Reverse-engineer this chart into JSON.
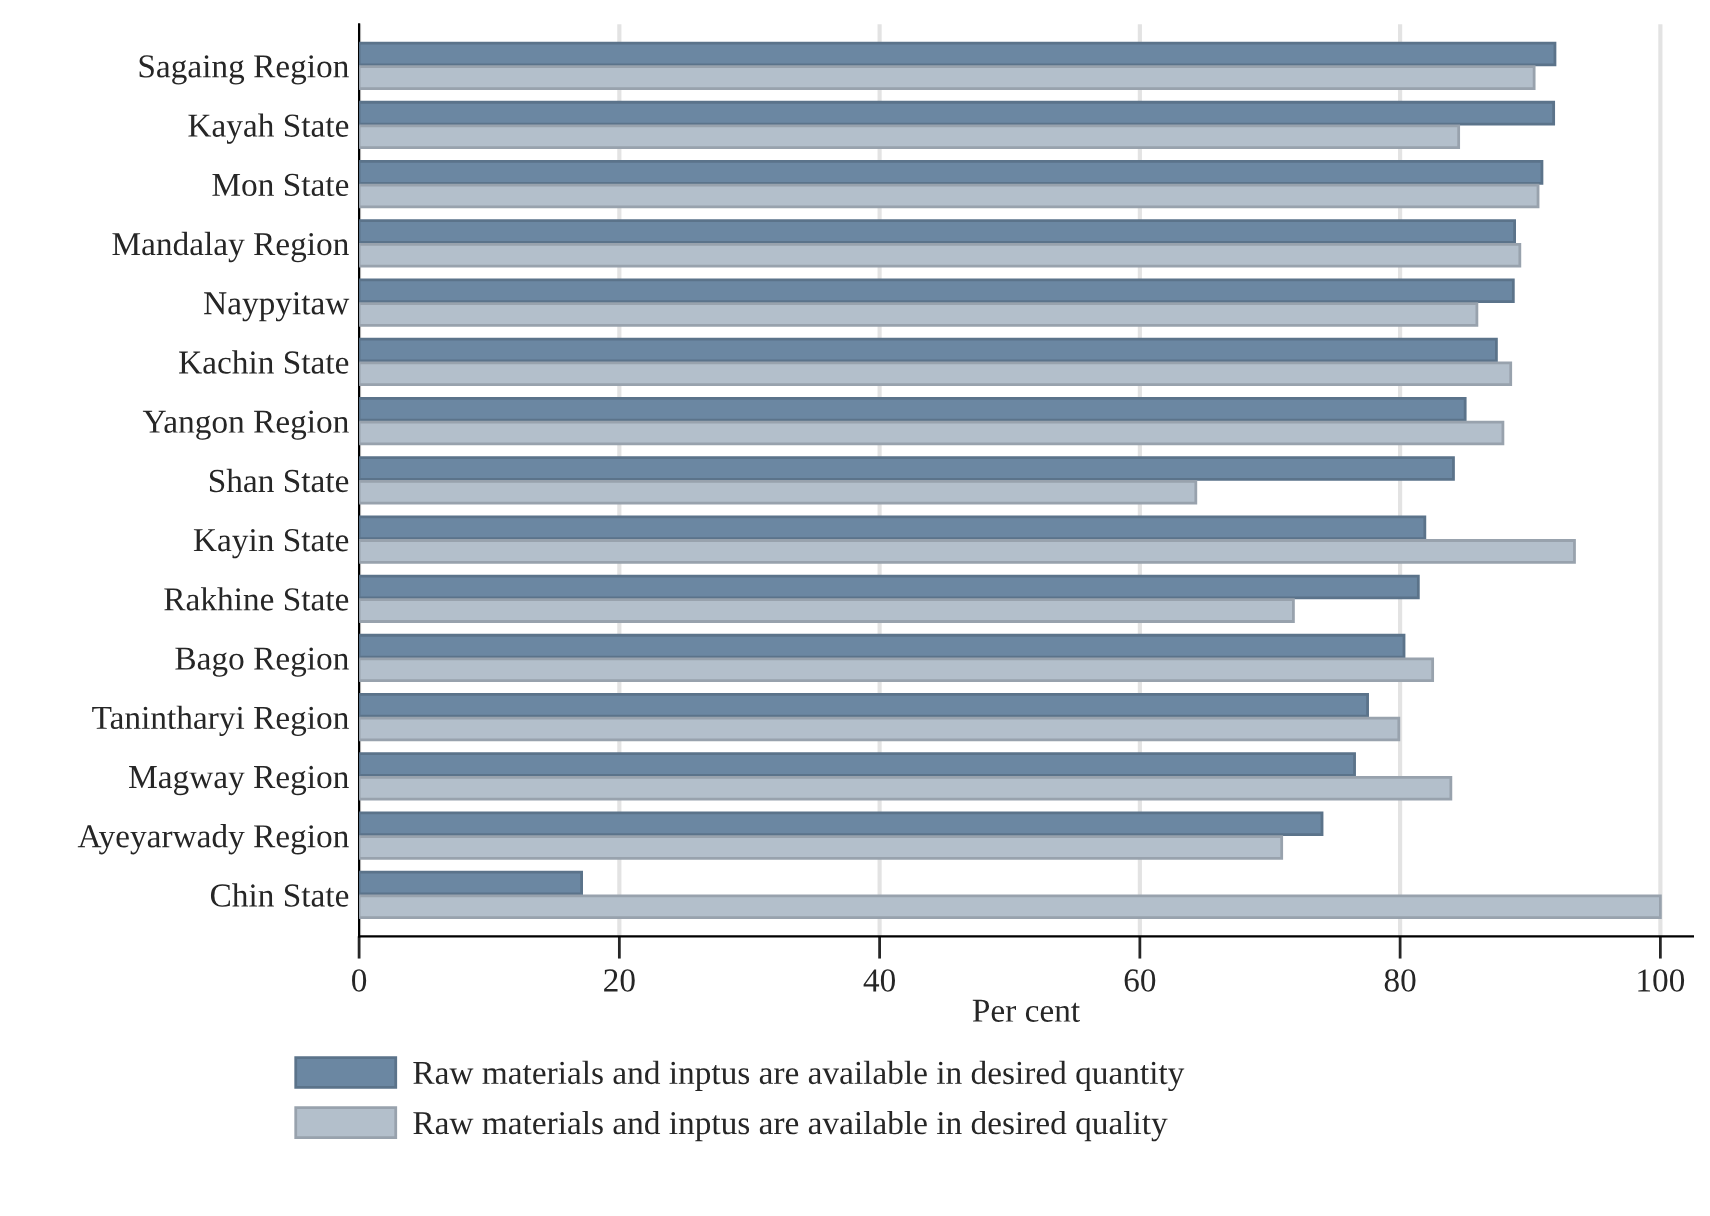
{
  "chart_data": {
    "type": "bar",
    "orientation": "horizontal",
    "xlabel": "Per cent",
    "categories": [
      "Sagaing Region",
      "Kayah State",
      "Mon State",
      "Mandalay Region",
      "Naypyitaw",
      "Kachin State",
      "Yangon Region",
      "Shan State",
      "Kayin State",
      "Rakhine State",
      "Bago Region",
      "Tanintharyi Region",
      "Magway Region",
      "Ayeyarwady Region",
      "Chin State"
    ],
    "series": [
      {
        "name": "Raw materials and inptus are available in desired quantity",
        "color": "#6b87a2",
        "values": [
          91.9,
          91.8,
          90.9,
          88.8,
          88.7,
          87.4,
          85.0,
          84.1,
          81.9,
          81.4,
          80.3,
          77.5,
          76.5,
          74.0,
          17.1
        ]
      },
      {
        "name": "Raw materials and inptus are available in desired quality",
        "color": "#b3bfcb",
        "values": [
          90.3,
          84.5,
          90.6,
          89.2,
          85.9,
          88.5,
          87.9,
          64.3,
          93.4,
          71.8,
          82.5,
          79.9,
          83.9,
          70.9,
          100
        ]
      }
    ],
    "xlim": [
      0,
      102.5
    ],
    "xticks": [
      0,
      20,
      40,
      60,
      80,
      100
    ],
    "grid": "x",
    "legend": "bottom"
  }
}
